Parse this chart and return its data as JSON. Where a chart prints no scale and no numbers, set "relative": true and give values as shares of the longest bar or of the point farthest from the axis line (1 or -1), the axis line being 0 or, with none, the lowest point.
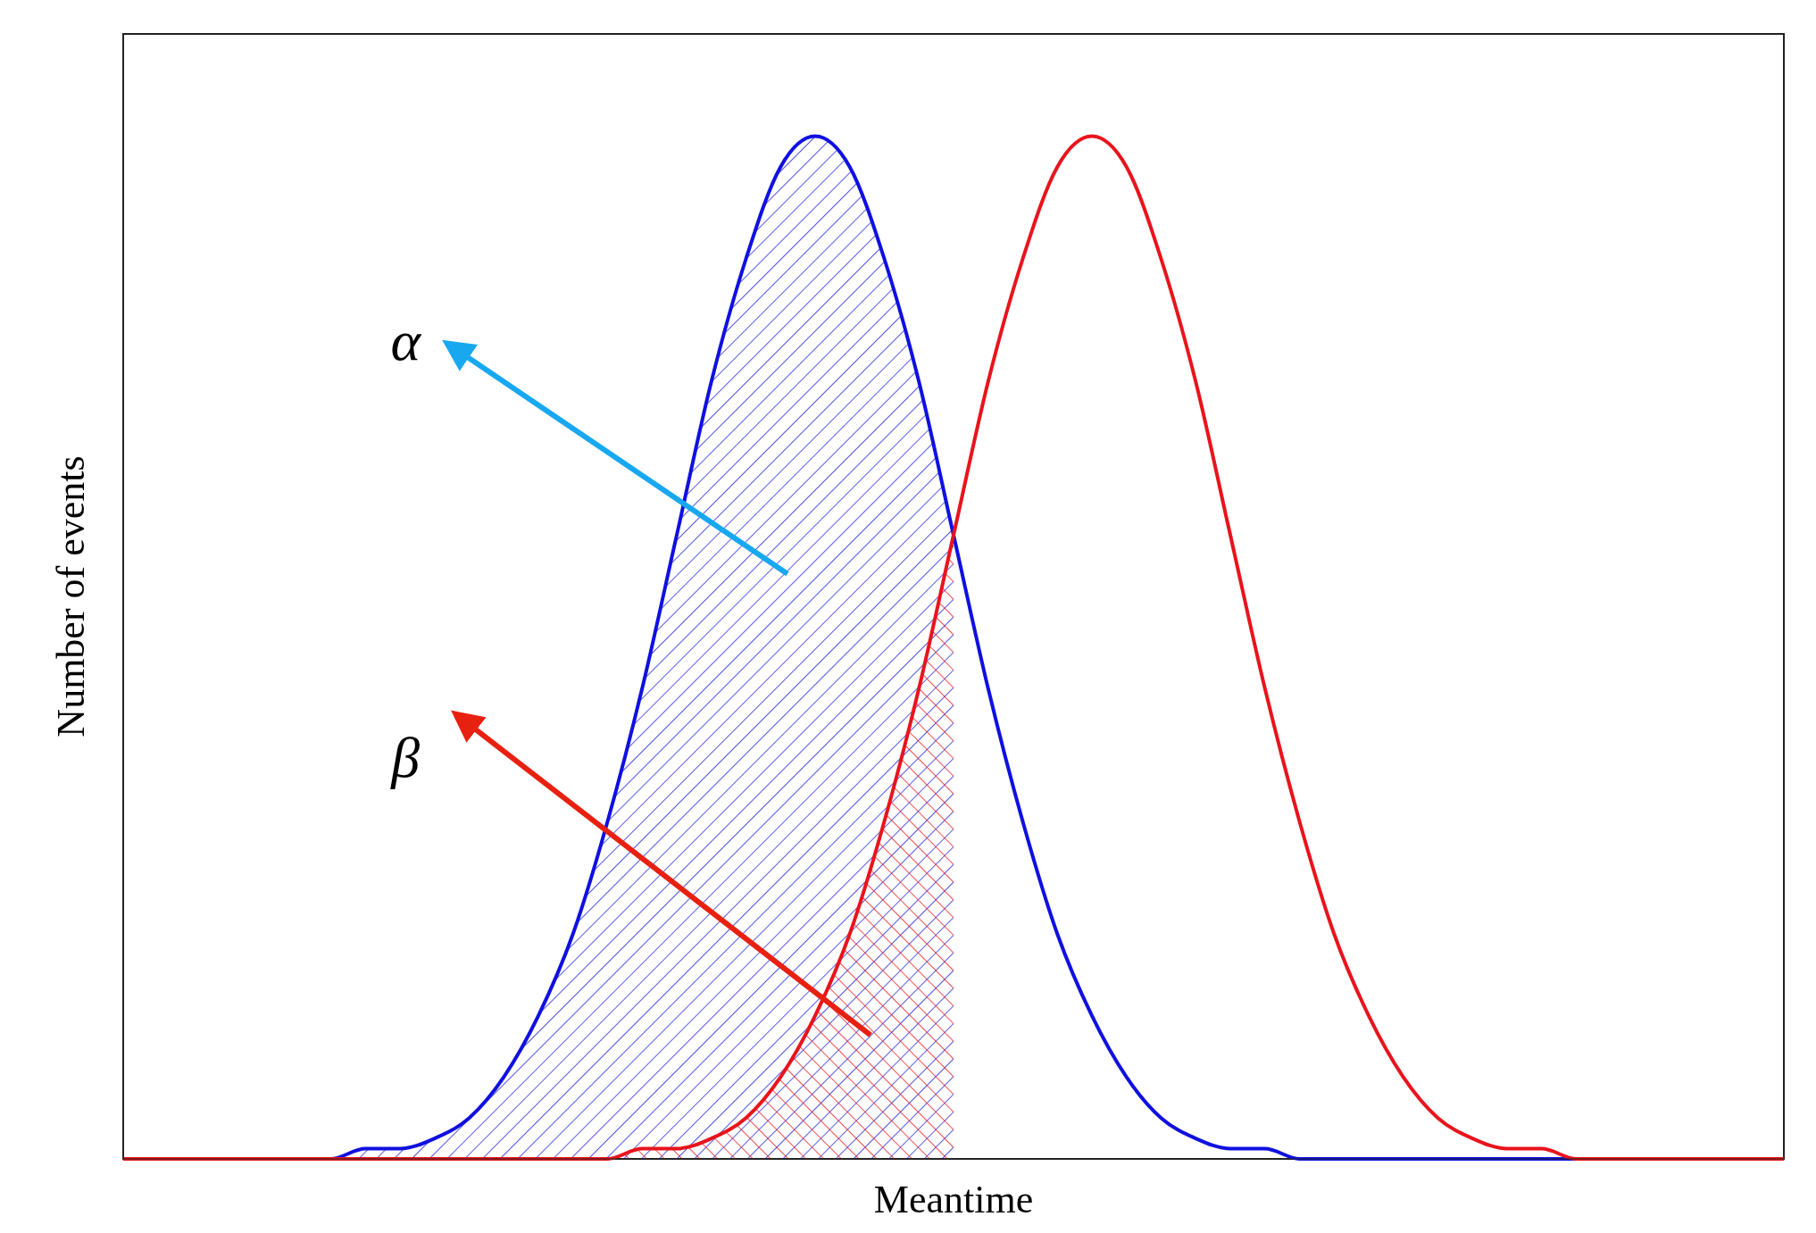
{
  "chart_data": {
    "type": "line",
    "relative": true,
    "xlabel": "Meantime",
    "ylabel": "Number of events",
    "categories": [
      null,
      null,
      null,
      null,
      null,
      null,
      null,
      null,
      null,
      null,
      null,
      null,
      null,
      null,
      null,
      null,
      null,
      null,
      null,
      null,
      null,
      null,
      null,
      null,
      null,
      null,
      null,
      null,
      null,
      null,
      null,
      null,
      null,
      null,
      null,
      null,
      null,
      null,
      null,
      null,
      null,
      null,
      null,
      null,
      null,
      null,
      null,
      null,
      null
    ],
    "series": [
      {
        "type": "area",
        "color": "#2020d8",
        "values": [
          0,
          0,
          0,
          0,
          0,
          0,
          0,
          0.01,
          0.01,
          0.02,
          0.04,
          0.08,
          0.14,
          0.22,
          0.33,
          0.46,
          0.61,
          0.76,
          0.88,
          0.97,
          1,
          0.97,
          0.88,
          0.76,
          0.61,
          null,
          null,
          null,
          null,
          null,
          null,
          null,
          null,
          null,
          null,
          null,
          null,
          null,
          null,
          null,
          null,
          null,
          null,
          null,
          null,
          null,
          null,
          null,
          null
        ]
      },
      {
        "type": "area",
        "color": "#e8141c",
        "values": [
          0,
          0,
          0,
          0,
          0,
          0,
          0,
          0,
          0,
          0,
          0,
          0,
          0,
          0,
          0,
          0.01,
          0.01,
          0.02,
          0.04,
          0.08,
          0.14,
          0.22,
          0.33,
          0.46,
          0.61,
          null,
          null,
          null,
          null,
          null,
          null,
          null,
          null,
          null,
          null,
          null,
          null,
          null,
          null,
          null,
          null,
          null,
          null,
          null,
          null,
          null,
          null,
          null,
          null
        ]
      },
      {
        "color": "#1010e0",
        "values": [
          null,
          null,
          null,
          null,
          null,
          0,
          0,
          0.01,
          0.01,
          0.02,
          0.04,
          0.08,
          0.14,
          0.22,
          0.33,
          0.46,
          0.61,
          0.76,
          0.88,
          0.97,
          1,
          0.97,
          0.88,
          0.76,
          0.61,
          0.46,
          0.33,
          0.22,
          0.14,
          0.08,
          0.04,
          0.02,
          0.01,
          0.01,
          0,
          0,
          0,
          0,
          0,
          0,
          0,
          0,
          0,
          0,
          null,
          null,
          null,
          null,
          null
        ]
      },
      {
        "color": "#e8141c",
        "values": [
          0,
          0,
          0,
          0,
          0,
          0,
          0,
          0,
          0,
          0,
          0,
          0,
          0,
          0,
          0,
          0.01,
          0.01,
          0.02,
          0.04,
          0.08,
          0.14,
          0.22,
          0.33,
          0.46,
          0.61,
          0.76,
          0.88,
          0.97,
          1,
          0.97,
          0.88,
          0.76,
          0.61,
          0.46,
          0.33,
          0.22,
          0.14,
          0.08,
          0.04,
          0.02,
          0.01,
          0.01,
          0,
          0,
          0,
          0,
          0,
          0,
          0
        ]
      }
    ],
    "annotations": [
      "α",
      "β"
    ]
  }
}
